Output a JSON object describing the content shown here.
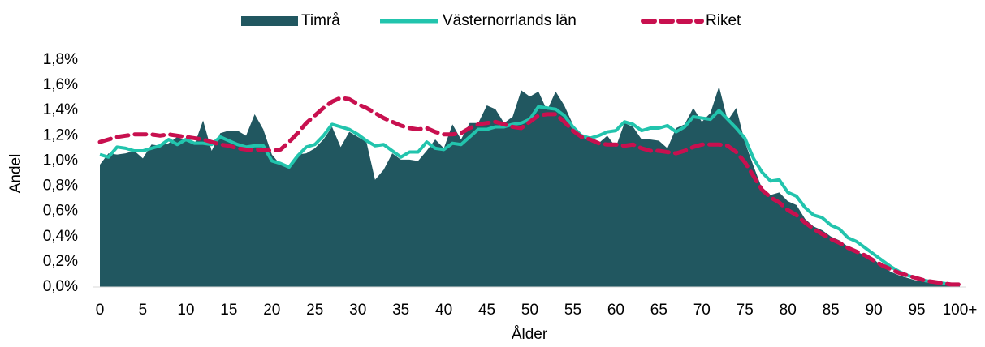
{
  "chart_data": {
    "type": "area_line",
    "x_label": "Ålder",
    "y_label": "Andel",
    "categories": [
      "0",
      null,
      null,
      null,
      null,
      "5",
      null,
      null,
      null,
      null,
      "10",
      null,
      null,
      null,
      null,
      "15",
      null,
      null,
      null,
      null,
      "20",
      null,
      null,
      null,
      null,
      "25",
      null,
      null,
      null,
      null,
      "30",
      null,
      null,
      null,
      null,
      "35",
      null,
      null,
      null,
      null,
      "40",
      null,
      null,
      null,
      null,
      "45",
      null,
      null,
      null,
      null,
      "50",
      null,
      null,
      null,
      null,
      "55",
      null,
      null,
      null,
      null,
      "60",
      null,
      null,
      null,
      null,
      "65",
      null,
      null,
      null,
      null,
      "70",
      null,
      null,
      null,
      null,
      "75",
      null,
      null,
      null,
      null,
      "80",
      null,
      null,
      null,
      null,
      "85",
      null,
      null,
      null,
      null,
      "90",
      null,
      null,
      null,
      null,
      "95",
      null,
      null,
      null,
      null,
      "100+"
    ],
    "ylim": [
      0,
      1.8
    ],
    "yticks": [
      {
        "value": 0,
        "label": "0,0%"
      },
      {
        "value": 0.2,
        "label": "0,2%"
      },
      {
        "value": 0.4,
        "label": "0,4%"
      },
      {
        "value": 0.6,
        "label": "0,6%"
      },
      {
        "value": 0.8,
        "label": "0,8%"
      },
      {
        "value": 1.0,
        "label": "1,0%"
      },
      {
        "value": 1.2,
        "label": "1,2%"
      },
      {
        "value": 1.4,
        "label": "1,4%"
      },
      {
        "value": 1.6,
        "label": "1,6%"
      },
      {
        "value": 1.8,
        "label": "1,8%"
      }
    ],
    "legend": "top",
    "series": [
      {
        "name": "Timrå",
        "kind": "area",
        "color": "#215760",
        "values": [
          0.97,
          1.06,
          1.05,
          1.06,
          1.08,
          1.02,
          1.13,
          1.12,
          1.14,
          1.19,
          1.16,
          1.13,
          1.32,
          1.08,
          1.22,
          1.24,
          1.24,
          1.2,
          1.37,
          1.25,
          1.05,
          0.97,
          0.95,
          1.05,
          1.06,
          1.1,
          1.17,
          1.27,
          1.11,
          1.23,
          1.19,
          1.15,
          0.85,
          0.93,
          1.06,
          1.01,
          1.01,
          1.0,
          1.08,
          1.17,
          1.1,
          1.29,
          1.17,
          1.3,
          1.3,
          1.44,
          1.41,
          1.3,
          1.35,
          1.56,
          1.51,
          1.55,
          1.4,
          1.55,
          1.44,
          1.29,
          1.19,
          1.19,
          1.14,
          1.2,
          1.11,
          1.3,
          1.27,
          1.17,
          1.17,
          1.16,
          1.1,
          1.26,
          1.29,
          1.42,
          1.31,
          1.38,
          1.59,
          1.32,
          1.42,
          1.15,
          0.96,
          0.78,
          0.73,
          0.75,
          0.68,
          0.65,
          0.54,
          0.48,
          0.45,
          0.4,
          0.37,
          0.32,
          0.28,
          0.25,
          0.22,
          0.16,
          0.12,
          0.09,
          0.07,
          0.05,
          0.04,
          0.03,
          0.02,
          0.01,
          0.02
        ]
      },
      {
        "name": "Västernorrlands län",
        "kind": "line",
        "color": "#22c4ad",
        "values": [
          1.05,
          1.03,
          1.11,
          1.1,
          1.08,
          1.08,
          1.1,
          1.12,
          1.17,
          1.13,
          1.17,
          1.14,
          1.14,
          1.13,
          1.19,
          1.16,
          1.13,
          1.11,
          1.12,
          1.12,
          1.0,
          0.98,
          0.95,
          1.04,
          1.11,
          1.13,
          1.2,
          1.29,
          1.27,
          1.25,
          1.21,
          1.16,
          1.12,
          1.13,
          1.08,
          1.03,
          1.07,
          1.07,
          1.15,
          1.1,
          1.09,
          1.14,
          1.13,
          1.19,
          1.25,
          1.25,
          1.27,
          1.27,
          1.29,
          1.3,
          1.33,
          1.43,
          1.42,
          1.41,
          1.36,
          1.27,
          1.2,
          1.18,
          1.2,
          1.23,
          1.24,
          1.31,
          1.29,
          1.24,
          1.26,
          1.26,
          1.28,
          1.23,
          1.27,
          1.35,
          1.34,
          1.33,
          1.4,
          1.33,
          1.26,
          1.18,
          1.02,
          0.91,
          0.84,
          0.85,
          0.75,
          0.72,
          0.63,
          0.57,
          0.55,
          0.49,
          0.46,
          0.39,
          0.36,
          0.31,
          0.26,
          0.21,
          0.16,
          0.12,
          0.09,
          0.07,
          0.05,
          0.04,
          0.03,
          0.02,
          0.02
        ]
      },
      {
        "name": "Riket",
        "kind": "dashed",
        "color": "#c8104f",
        "values": [
          1.15,
          1.17,
          1.19,
          1.2,
          1.21,
          1.21,
          1.21,
          1.2,
          1.21,
          1.2,
          1.19,
          1.18,
          1.17,
          1.15,
          1.13,
          1.12,
          1.1,
          1.09,
          1.09,
          1.09,
          1.08,
          1.09,
          1.15,
          1.22,
          1.3,
          1.36,
          1.42,
          1.47,
          1.5,
          1.49,
          1.45,
          1.42,
          1.38,
          1.34,
          1.31,
          1.28,
          1.26,
          1.25,
          1.26,
          1.23,
          1.21,
          1.21,
          1.22,
          1.26,
          1.29,
          1.3,
          1.31,
          1.29,
          1.27,
          1.26,
          1.31,
          1.36,
          1.37,
          1.37,
          1.31,
          1.24,
          1.19,
          1.17,
          1.14,
          1.13,
          1.13,
          1.12,
          1.13,
          1.1,
          1.08,
          1.08,
          1.07,
          1.06,
          1.08,
          1.11,
          1.13,
          1.13,
          1.13,
          1.12,
          1.07,
          0.99,
          0.88,
          0.77,
          0.71,
          0.67,
          0.61,
          0.57,
          0.51,
          0.46,
          0.42,
          0.38,
          0.35,
          0.31,
          0.28,
          0.25,
          0.21,
          0.17,
          0.14,
          0.11,
          0.09,
          0.07,
          0.05,
          0.04,
          0.03,
          0.02,
          0.02
        ]
      }
    ]
  }
}
